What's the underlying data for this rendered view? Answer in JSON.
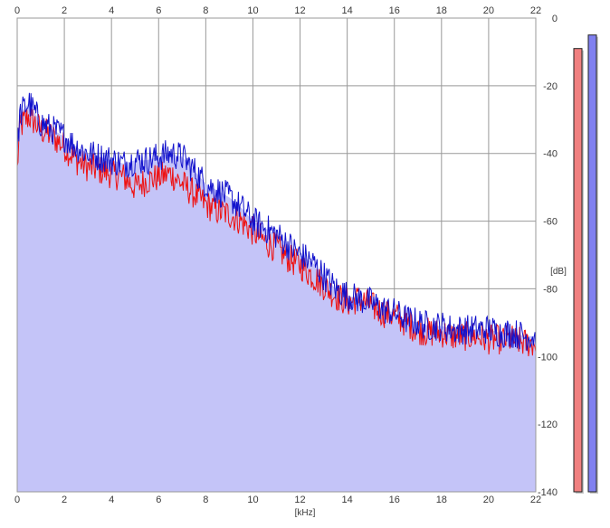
{
  "chart_data": {
    "type": "area",
    "xlabel": "[kHz]",
    "ylabel": "[dB]",
    "xlim": [
      0,
      22
    ],
    "ylim": [
      -140,
      0
    ],
    "x_ticks": [
      0,
      2,
      4,
      6,
      8,
      10,
      12,
      14,
      16,
      18,
      20,
      22
    ],
    "y_ticks": [
      0,
      -20,
      -40,
      -60,
      -80,
      -100,
      -120,
      -140
    ],
    "grid": true,
    "colors": {
      "area_fill": "#c4c4f8",
      "channel_left": "#ee1111",
      "channel_right": "#1111cc",
      "grid": "#999999",
      "level_meter_left": "#f08080",
      "level_meter_right": "#8080f0"
    },
    "series": [
      {
        "color": "#ee1111",
        "x": [
          0,
          0.1,
          0.25,
          0.5,
          0.75,
          1,
          1.5,
          2,
          2.5,
          3,
          3.5,
          4,
          4.5,
          5,
          5.5,
          6,
          6.5,
          7,
          7.5,
          8,
          8.5,
          9,
          9.5,
          10,
          10.5,
          11,
          11.5,
          12,
          12.5,
          13,
          13.5,
          14,
          14.5,
          15,
          15.5,
          16,
          16.5,
          17,
          17.5,
          18,
          18.5,
          19,
          19.5,
          20,
          20.5,
          21,
          21.5,
          22
        ],
        "values": [
          -45,
          -33,
          -31,
          -29,
          -31,
          -33,
          -35,
          -38,
          -42,
          -44,
          -45,
          -46,
          -47,
          -50,
          -48,
          -47,
          -46,
          -49,
          -52,
          -55,
          -57,
          -58,
          -60,
          -63,
          -66,
          -68,
          -71,
          -73,
          -76,
          -79,
          -82,
          -84,
          -83,
          -85,
          -87,
          -88,
          -90,
          -92,
          -93,
          -93,
          -94,
          -94,
          -94,
          -95,
          -95,
          -95,
          -96,
          -96
        ]
      },
      {
        "color": "#1111cc",
        "x": [
          0,
          0.1,
          0.25,
          0.5,
          0.75,
          1,
          1.5,
          2,
          2.5,
          3,
          3.5,
          4,
          4.5,
          5,
          5.5,
          6,
          6.5,
          7,
          7.5,
          8,
          8.5,
          9,
          9.5,
          10,
          10.5,
          11,
          11.5,
          12,
          12.5,
          13,
          13.5,
          14,
          14.5,
          15,
          15.5,
          16,
          16.5,
          17,
          17.5,
          18,
          18.5,
          19,
          19.5,
          20,
          20.5,
          21,
          21.5,
          22
        ],
        "values": [
          -40,
          -29,
          -27,
          -25,
          -28,
          -31,
          -33,
          -35,
          -38,
          -40,
          -41,
          -42,
          -43,
          -42,
          -42,
          -41,
          -40,
          -41,
          -45,
          -49,
          -51,
          -53,
          -56,
          -60,
          -62,
          -64,
          -67,
          -70,
          -72,
          -76,
          -80,
          -82,
          -83,
          -84,
          -86,
          -87,
          -89,
          -90,
          -91,
          -91,
          -92,
          -92,
          -92,
          -92,
          -93,
          -93,
          -94,
          -94
        ]
      }
    ],
    "level_meters": [
      {
        "color": "#f08080",
        "value": -9
      },
      {
        "color": "#8080f0",
        "value": -5
      }
    ]
  }
}
